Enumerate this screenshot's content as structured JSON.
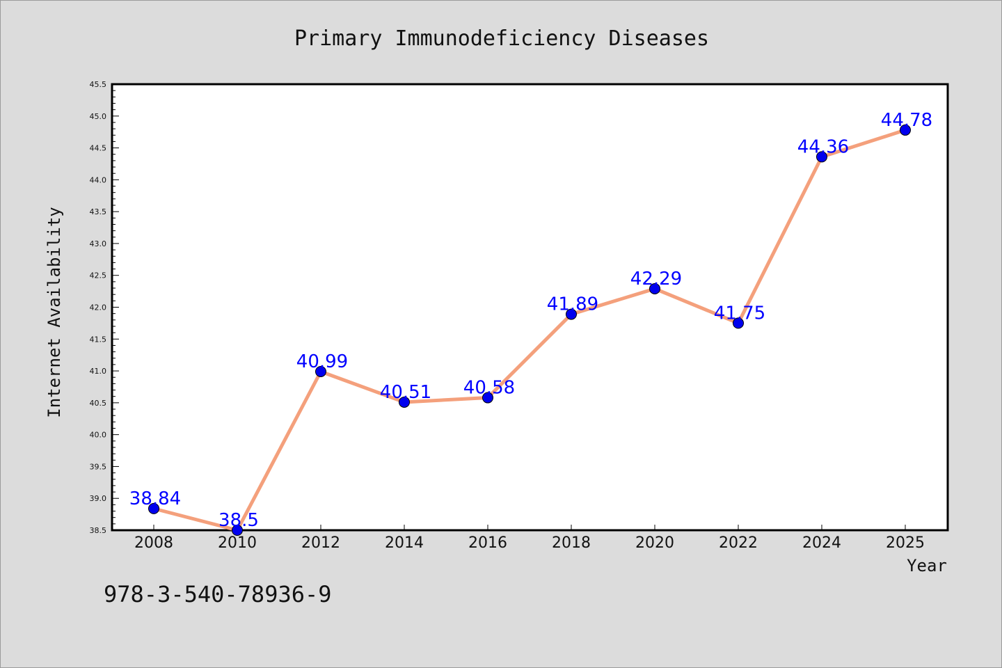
{
  "chart_data": {
    "type": "line",
    "title": "Primary Immunodeficiency Diseases",
    "xlabel": "Year",
    "ylabel": "Internet Availability",
    "categories": [
      "2008",
      "2010",
      "2012",
      "2014",
      "2016",
      "2018",
      "2020",
      "2022",
      "2024",
      "2025"
    ],
    "series": [
      {
        "values": [
          38.84,
          38.5,
          40.99,
          40.51,
          40.58,
          41.89,
          42.29,
          41.75,
          44.36,
          44.78
        ],
        "line_color": "#f4a07c",
        "marker_color": "#0000ee",
        "label_color": "#0000ff"
      }
    ],
    "data_labels": [
      "38.84",
      "38.5",
      "40.99",
      "40.51",
      "40.58",
      "41.89",
      "42.29",
      "41.75",
      "44.36",
      "44.78"
    ],
    "ylim": [
      38.5,
      45.5
    ],
    "yticks": [
      "38.5",
      "39.0",
      "39.5",
      "40.0",
      "40.5",
      "41.0",
      "41.5",
      "42.0",
      "42.5",
      "43.0",
      "43.5",
      "44.0",
      "44.5",
      "45.0",
      "45.5"
    ],
    "grid": false,
    "legend": "none"
  },
  "annotation": "978-3-540-78936-9"
}
